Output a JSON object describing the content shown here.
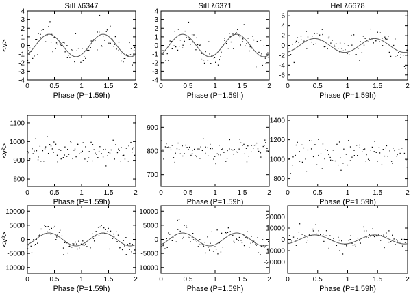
{
  "chart_data": [
    {
      "type": "scatter",
      "row": 0,
      "col": 0,
      "title": "SiII λ6347",
      "xlabel": "Phase (P=1.59h)",
      "ylabel": "<v>",
      "xlim": [
        0,
        2
      ],
      "ylim": [
        -4,
        4
      ],
      "xticks": [
        0,
        0.5,
        1,
        1.5,
        2
      ],
      "xtick_labels": [
        "0",
        "0.5",
        "1",
        "1.5",
        "2"
      ],
      "yticks": [
        -4,
        -3,
        -2,
        -1,
        0,
        1,
        2,
        3,
        4
      ],
      "ytick_labels": [
        "-4",
        "-3",
        "-2",
        "-1",
        "0",
        "1",
        "2",
        "3",
        "4"
      ],
      "fit": {
        "mean": 0,
        "amplitude": 1.3,
        "phase": 0.15
      },
      "noise": 0.75,
      "seed": 11
    },
    {
      "type": "scatter",
      "row": 0,
      "col": 1,
      "title": "SiII λ6371",
      "xlabel": "Phase (P=1.59h)",
      "ylabel": "",
      "xlim": [
        0,
        2
      ],
      "ylim": [
        -4,
        4
      ],
      "xticks": [
        0,
        0.5,
        1,
        1.5,
        2
      ],
      "xtick_labels": [
        "0",
        "0.5",
        "1",
        "1.5",
        "2"
      ],
      "yticks": [
        -4,
        -3,
        -2,
        -1,
        0,
        1,
        2,
        3,
        4
      ],
      "ytick_labels": [
        "-4",
        "-3",
        "-2",
        "-1",
        "0",
        "1",
        "2",
        "3",
        "4"
      ],
      "fit": {
        "mean": 0,
        "amplitude": 1.3,
        "phase": 0.15
      },
      "noise": 0.75,
      "seed": 23
    },
    {
      "type": "scatter",
      "row": 0,
      "col": 2,
      "title": "HeI λ6678",
      "xlabel": "Phase (P=1.59h)",
      "ylabel": "",
      "xlim": [
        0,
        2
      ],
      "ylim": [
        -7,
        7
      ],
      "xticks": [
        0,
        0.5,
        1,
        1.5,
        2
      ],
      "xtick_labels": [
        "0",
        "0.5",
        "1",
        "1.5",
        "2"
      ],
      "yticks": [
        -6,
        -4,
        -2,
        0,
        2,
        4,
        6
      ],
      "ytick_labels": [
        "-6",
        "-4",
        "-2",
        "0",
        "2",
        "4",
        "6"
      ],
      "fit": {
        "mean": 0,
        "amplitude": 1.4,
        "phase": 0.2
      },
      "noise": 1.3,
      "seed": 37
    },
    {
      "type": "scatter",
      "row": 1,
      "col": 0,
      "title": "",
      "xlabel": "Phase (P=1.59h)",
      "ylabel": "<v²>",
      "xlim": [
        0,
        2
      ],
      "ylim": [
        760,
        1140
      ],
      "xticks": [
        0,
        0.5,
        1,
        1.5,
        2
      ],
      "xtick_labels": [
        "0",
        "0.5",
        "1",
        "1.5",
        "2"
      ],
      "yticks": [
        800,
        900,
        1000,
        1100
      ],
      "ytick_labels": [
        "800",
        "900",
        "1000",
        "1100"
      ],
      "fit": null,
      "mean": 945,
      "noise": 32,
      "seed": 41
    },
    {
      "type": "scatter",
      "row": 1,
      "col": 1,
      "title": "",
      "xlabel": "Phase (P=1.59h)",
      "ylabel": "",
      "xlim": [
        0,
        2
      ],
      "ylim": [
        650,
        950
      ],
      "xticks": [
        0,
        0.5,
        1,
        1.5,
        2
      ],
      "xtick_labels": [
        "0",
        "0.5",
        "1",
        "1.5",
        "2"
      ],
      "yticks": [
        700,
        800,
        900
      ],
      "ytick_labels": [
        "700",
        "800",
        "900"
      ],
      "fit": null,
      "mean": 805,
      "noise": 22,
      "seed": 53
    },
    {
      "type": "scatter",
      "row": 1,
      "col": 2,
      "title": "",
      "xlabel": "Phase (P=1.59h)",
      "ylabel": "",
      "xlim": [
        0,
        2
      ],
      "ylim": [
        720,
        1450
      ],
      "xticks": [
        0,
        0.5,
        1,
        1.5,
        2
      ],
      "xtick_labels": [
        "0",
        "0.5",
        "1",
        "1.5",
        "2"
      ],
      "yticks": [
        800,
        1000,
        1200,
        1400
      ],
      "ytick_labels": [
        "800",
        "1000",
        "1200",
        "1400"
      ],
      "fit": null,
      "mean": 1050,
      "noise": 85,
      "seed": 67
    },
    {
      "type": "scatter",
      "row": 2,
      "col": 0,
      "title": "",
      "xlabel": "Phase (P=1.59h)",
      "ylabel": "<v³>",
      "xlim": [
        0,
        2
      ],
      "ylim": [
        -12000,
        12000
      ],
      "xticks": [
        0,
        0.5,
        1,
        1.5,
        2
      ],
      "xtick_labels": [
        "0",
        "0.5",
        "1",
        "1.5",
        "2"
      ],
      "yticks": [
        -10000,
        -5000,
        0,
        5000,
        10000
      ],
      "ytick_labels": [
        "-10000",
        "-5000",
        "0",
        "5000",
        "10000"
      ],
      "fit": {
        "mean": 0,
        "amplitude": 2300,
        "phase": 0.15
      },
      "noise": 2000,
      "seed": 71
    },
    {
      "type": "scatter",
      "row": 2,
      "col": 1,
      "title": "",
      "xlabel": "Phase (P=1.59h)",
      "ylabel": "",
      "xlim": [
        0,
        2
      ],
      "ylim": [
        -12000,
        12000
      ],
      "xticks": [
        0,
        0.5,
        1,
        1.5,
        2
      ],
      "xtick_labels": [
        "0",
        "0.5",
        "1",
        "1.5",
        "2"
      ],
      "yticks": [
        -10000,
        -5000,
        0,
        5000,
        10000
      ],
      "ytick_labels": [
        "-10000",
        "-5000",
        "0",
        "5000",
        "10000"
      ],
      "fit": {
        "mean": 0,
        "amplitude": 2300,
        "phase": 0.15
      },
      "noise": 2000,
      "seed": 83
    },
    {
      "type": "scatter",
      "row": 2,
      "col": 2,
      "title": "",
      "xlabel": "Phase (P=1.59h)",
      "ylabel": "",
      "xlim": [
        0,
        2
      ],
      "ylim": [
        -30000,
        30000
      ],
      "xticks": [
        0,
        0.5,
        1,
        1.5,
        2
      ],
      "xtick_labels": [
        "0",
        "0.5",
        "1",
        "1.5",
        "2"
      ],
      "yticks": [
        -20000,
        -10000,
        0,
        10000,
        20000
      ],
      "ytick_labels": [
        "-20000",
        "-10000",
        "0",
        "10000",
        "20000"
      ],
      "fit": {
        "mean": 0,
        "amplitude": 4000,
        "phase": 0.2
      },
      "noise": 4500,
      "seed": 97
    }
  ],
  "n_points": 90,
  "colors": {
    "axis": "#000000",
    "points": "#000000",
    "fit": "#555555"
  }
}
